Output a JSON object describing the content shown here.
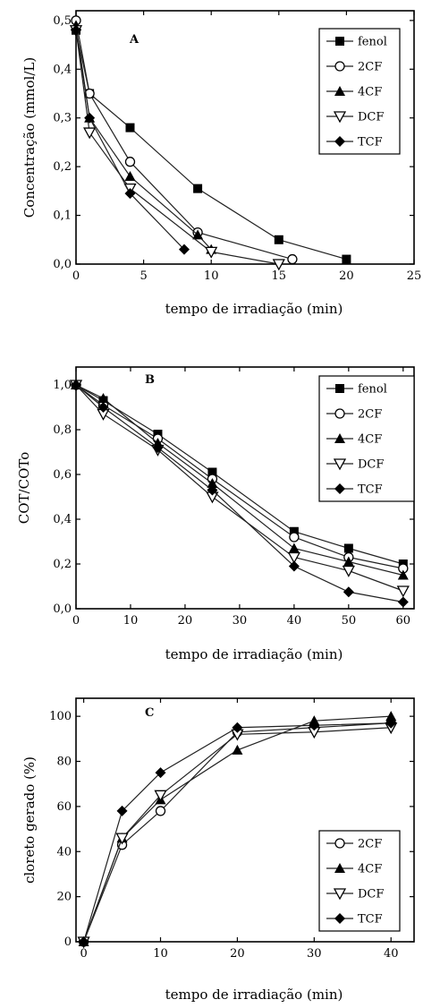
{
  "chart_data": [
    {
      "type": "line",
      "panel_label": "A",
      "xlabel": "tempo de irradiação (min)",
      "ylabel": "Concentração (mmol/L)",
      "xlim": [
        0,
        25
      ],
      "ylim": [
        0,
        0.52
      ],
      "xticks": [
        0,
        5,
        10,
        15,
        20,
        25
      ],
      "xtick_labels": [
        "0",
        "5",
        "10",
        "15",
        "20",
        "25"
      ],
      "yticks": [
        0,
        0.1,
        0.2,
        0.3,
        0.4,
        0.5
      ],
      "ytick_labels": [
        "0,0",
        "0,1",
        "0,2",
        "0,3",
        "0,4",
        "0,5"
      ],
      "legend": "top-right",
      "series": [
        {
          "name": "fenol",
          "marker": "square",
          "x": [
            0,
            1,
            4,
            9,
            15,
            20
          ],
          "y": [
            0.48,
            0.35,
            0.28,
            0.155,
            0.05,
            0.01
          ]
        },
        {
          "name": "2CF",
          "marker": "circle-open",
          "x": [
            0,
            1,
            4,
            9,
            16
          ],
          "y": [
            0.5,
            0.35,
            0.21,
            0.065,
            0.01
          ]
        },
        {
          "name": "4CF",
          "marker": "triangle-up",
          "x": [
            0,
            1,
            4,
            9,
            10
          ],
          "y": [
            0.49,
            0.3,
            0.18,
            0.06,
            0.03
          ]
        },
        {
          "name": "DCF",
          "marker": "triangle-down-open",
          "x": [
            0,
            1,
            4,
            10,
            15
          ],
          "y": [
            0.48,
            0.27,
            0.155,
            0.025,
            0.0
          ]
        },
        {
          "name": "TCF",
          "marker": "diamond",
          "x": [
            0,
            1,
            4,
            8
          ],
          "y": [
            0.48,
            0.3,
            0.145,
            0.03
          ]
        }
      ]
    },
    {
      "type": "line",
      "panel_label": "B",
      "xlabel": "tempo de irradiação (min)",
      "ylabel": "COT/COTo",
      "xlim": [
        0,
        62
      ],
      "ylim": [
        0,
        1.08
      ],
      "xticks": [
        0,
        10,
        20,
        30,
        40,
        50,
        60
      ],
      "xtick_labels": [
        "0",
        "10",
        "20",
        "30",
        "40",
        "50",
        "60"
      ],
      "yticks": [
        0,
        0.2,
        0.4,
        0.6,
        0.8,
        1.0
      ],
      "ytick_labels": [
        "0,0",
        "0,2",
        "0,4",
        "0,6",
        "0,8",
        "1,0"
      ],
      "legend": "top-right",
      "series": [
        {
          "name": "fenol",
          "marker": "square",
          "x": [
            0,
            5,
            15,
            25,
            40,
            50,
            60
          ],
          "y": [
            1.0,
            0.93,
            0.78,
            0.61,
            0.345,
            0.27,
            0.2
          ]
        },
        {
          "name": "2CF",
          "marker": "circle-open",
          "x": [
            0,
            5,
            15,
            25,
            40,
            50,
            60
          ],
          "y": [
            1.0,
            0.91,
            0.76,
            0.58,
            0.32,
            0.23,
            0.18
          ]
        },
        {
          "name": "4CF",
          "marker": "triangle-up",
          "x": [
            0,
            5,
            15,
            25,
            40,
            50,
            60
          ],
          "y": [
            1.0,
            0.94,
            0.74,
            0.56,
            0.27,
            0.21,
            0.15
          ]
        },
        {
          "name": "DCF",
          "marker": "triangle-down-open",
          "x": [
            0,
            5,
            15,
            25,
            40,
            50,
            60
          ],
          "y": [
            1.0,
            0.87,
            0.71,
            0.5,
            0.23,
            0.17,
            0.08
          ]
        },
        {
          "name": "TCF",
          "marker": "diamond",
          "x": [
            0,
            5,
            15,
            25,
            40,
            50,
            60
          ],
          "y": [
            1.0,
            0.9,
            0.72,
            0.53,
            0.19,
            0.075,
            0.03
          ]
        }
      ]
    },
    {
      "type": "line",
      "panel_label": "C",
      "xlabel": "tempo de irradiação (min)",
      "ylabel": "cloreto gerado (%)",
      "xlim": [
        -1,
        43
      ],
      "ylim": [
        0,
        108
      ],
      "xticks": [
        0,
        10,
        20,
        30,
        40
      ],
      "xtick_labels": [
        "0",
        "10",
        "20",
        "30",
        "40"
      ],
      "yticks": [
        0,
        20,
        40,
        60,
        80,
        100
      ],
      "ytick_labels": [
        "0",
        "20",
        "40",
        "60",
        "80",
        "100"
      ],
      "legend": "bottom-right",
      "series": [
        {
          "name": "2CF",
          "marker": "circle-open",
          "x": [
            0,
            5,
            10,
            20,
            30,
            40
          ],
          "y": [
            0,
            43,
            58,
            93,
            95,
            97
          ]
        },
        {
          "name": "4CF",
          "marker": "triangle-up",
          "x": [
            0,
            5,
            10,
            20,
            30,
            40
          ],
          "y": [
            0,
            46,
            63,
            85,
            98,
            100
          ]
        },
        {
          "name": "DCF",
          "marker": "triangle-down-open",
          "x": [
            0,
            5,
            10,
            20,
            30,
            40
          ],
          "y": [
            0,
            46,
            65,
            92,
            93,
            95
          ]
        },
        {
          "name": "TCF",
          "marker": "diamond",
          "x": [
            0,
            5,
            10,
            20,
            30,
            40
          ],
          "y": [
            0,
            58,
            75,
            95,
            96,
            97
          ]
        }
      ]
    }
  ]
}
